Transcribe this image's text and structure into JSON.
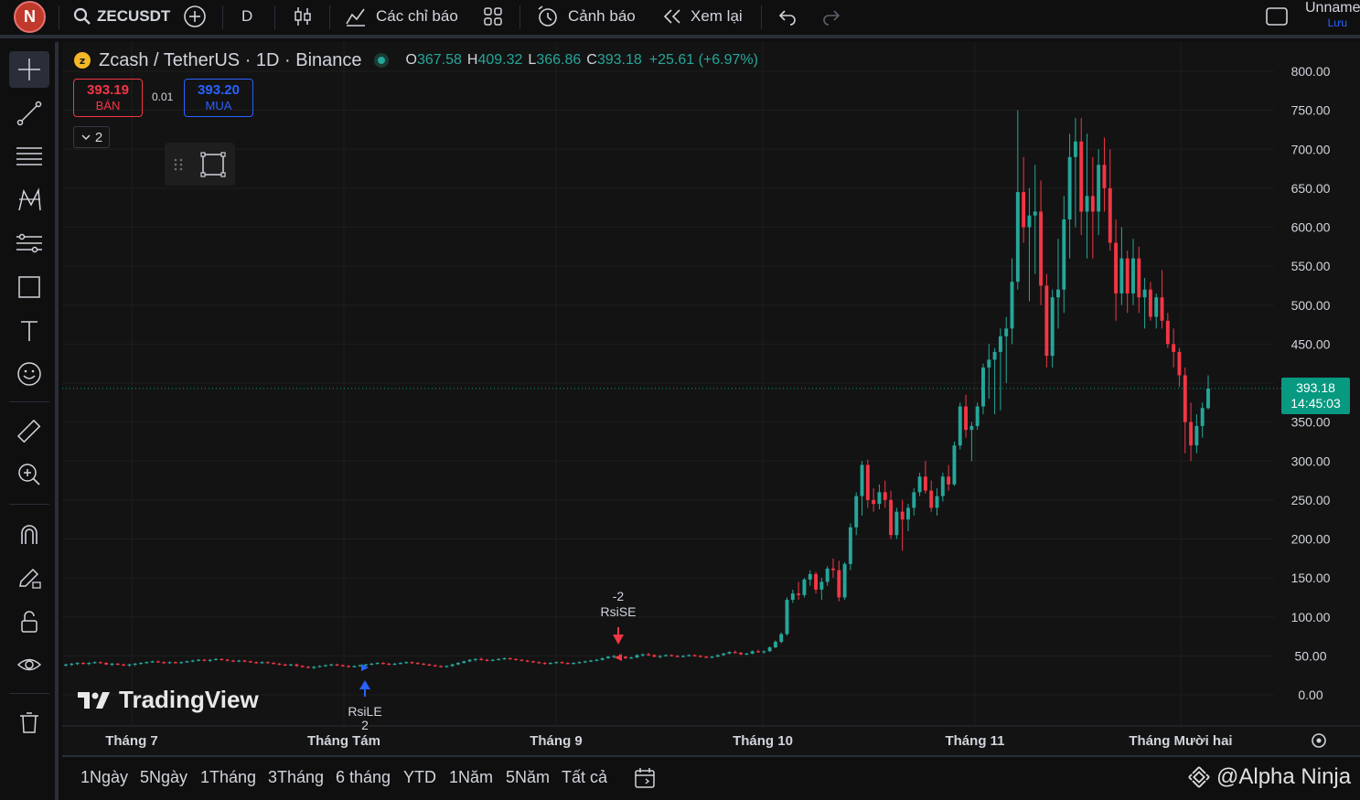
{
  "topbar": {
    "avatar_letter": "N",
    "symbol": "ZECUSDT",
    "interval": "D",
    "indicators_label": "Các chỉ báo",
    "alerts_label": "Cảnh báo",
    "replay_label": "Xem lại",
    "layout_name": "Unname",
    "layout_save": "Lưu"
  },
  "legend": {
    "title": "Zcash / TetherUS · 1D · Binance",
    "o_key": "O",
    "o": "367.58",
    "h_key": "H",
    "h": "409.32",
    "l_key": "L",
    "l": "366.86",
    "c_key": "C",
    "c": "393.18",
    "change": "+25.61 (+6.97%)"
  },
  "trade": {
    "sell_price": "393.19",
    "sell_label": "BÁN",
    "spread": "0.01",
    "buy_price": "393.20",
    "buy_label": "MUA",
    "collapse_count": "2"
  },
  "price_label": {
    "price": "393.18",
    "countdown": "14:45:03"
  },
  "watermark": "TradingView",
  "credit": "@Alpha Ninja",
  "ranges": [
    "1Ngày",
    "5Ngày",
    "1Tháng",
    "3Tháng",
    "6 tháng",
    "YTD",
    "1Năm",
    "5Năm",
    "Tất cả"
  ],
  "colors": {
    "up": "#26a69a",
    "down": "#f23645",
    "bg": "#131313",
    "grid": "#1e1e1e",
    "price_line": "#089981",
    "signal_long": "#2962ff",
    "signal_short": "#f23645"
  },
  "chart_data": {
    "type": "candlestick",
    "title": "Zcash / TetherUS · 1D · Binance",
    "ylim": [
      0,
      800
    ],
    "y_ticks": [
      "800.00",
      "750.00",
      "700.00",
      "650.00",
      "600.00",
      "550.00",
      "500.00",
      "450.00",
      "400.00",
      "350.00",
      "300.00",
      "250.00",
      "200.00",
      "150.00",
      "100.00",
      "50.00",
      "0.00"
    ],
    "x_ticks": [
      "Tháng 7",
      "Tháng Tám",
      "Tháng 9",
      "Tháng 10",
      "Tháng 11",
      "Tháng Mười hai"
    ],
    "last_price": 393.18,
    "signals": [
      {
        "label": "RsiLE",
        "count": "2",
        "type": "long",
        "price": 35
      },
      {
        "label": "RsiSE",
        "count": "-2",
        "type": "short",
        "price": 48
      }
    ],
    "candles_ohlc": [
      [
        38,
        40,
        36,
        39
      ],
      [
        39,
        41,
        37,
        40
      ],
      [
        40,
        42,
        38,
        41
      ],
      [
        41,
        42,
        39,
        40
      ],
      [
        40,
        42,
        38,
        41
      ],
      [
        41,
        43,
        40,
        42
      ],
      [
        42,
        43,
        40,
        41
      ],
      [
        41,
        42,
        38,
        39
      ],
      [
        39,
        41,
        37,
        40
      ],
      [
        40,
        41,
        38,
        39
      ],
      [
        39,
        40,
        37,
        38
      ],
      [
        38,
        40,
        36,
        39
      ],
      [
        39,
        41,
        37,
        40
      ],
      [
        40,
        42,
        39,
        41
      ],
      [
        41,
        43,
        40,
        42
      ],
      [
        42,
        44,
        41,
        43
      ],
      [
        43,
        44,
        41,
        42
      ],
      [
        42,
        43,
        40,
        41
      ],
      [
        41,
        43,
        40,
        42
      ],
      [
        42,
        43,
        40,
        41
      ],
      [
        41,
        43,
        40,
        42
      ],
      [
        42,
        44,
        41,
        43
      ],
      [
        43,
        45,
        42,
        44
      ],
      [
        44,
        46,
        43,
        45
      ],
      [
        45,
        46,
        43,
        44
      ],
      [
        44,
        46,
        42,
        45
      ],
      [
        45,
        47,
        44,
        46
      ],
      [
        46,
        47,
        44,
        45
      ],
      [
        45,
        46,
        43,
        44
      ],
      [
        44,
        45,
        42,
        43
      ],
      [
        43,
        45,
        42,
        44
      ],
      [
        44,
        45,
        42,
        43
      ],
      [
        43,
        44,
        41,
        42
      ],
      [
        42,
        43,
        40,
        41
      ],
      [
        41,
        43,
        40,
        42
      ],
      [
        42,
        43,
        40,
        41
      ],
      [
        41,
        42,
        39,
        40
      ],
      [
        40,
        41,
        38,
        39
      ],
      [
        39,
        40,
        37,
        38
      ],
      [
        38,
        40,
        37,
        39
      ],
      [
        39,
        40,
        36,
        37
      ],
      [
        37,
        38,
        35,
        36
      ],
      [
        36,
        37,
        34,
        35
      ],
      [
        35,
        37,
        33,
        36
      ],
      [
        36,
        38,
        35,
        37
      ],
      [
        37,
        39,
        36,
        38
      ],
      [
        38,
        40,
        37,
        39
      ],
      [
        39,
        40,
        37,
        38
      ],
      [
        38,
        39,
        36,
        37
      ],
      [
        37,
        38,
        35,
        36
      ],
      [
        36,
        38,
        35,
        37
      ],
      [
        37,
        39,
        36,
        38
      ],
      [
        38,
        40,
        37,
        39
      ],
      [
        39,
        41,
        38,
        40
      ],
      [
        40,
        42,
        39,
        41
      ],
      [
        41,
        42,
        39,
        40
      ],
      [
        40,
        41,
        38,
        39
      ],
      [
        39,
        41,
        38,
        40
      ],
      [
        40,
        42,
        39,
        41
      ],
      [
        41,
        43,
        40,
        42
      ],
      [
        42,
        43,
        40,
        41
      ],
      [
        41,
        42,
        39,
        40
      ],
      [
        40,
        41,
        38,
        39
      ],
      [
        39,
        40,
        37,
        38
      ],
      [
        38,
        39,
        36,
        37
      ],
      [
        37,
        38,
        35,
        36
      ],
      [
        36,
        38,
        35,
        37
      ],
      [
        37,
        40,
        36,
        39
      ],
      [
        39,
        42,
        38,
        41
      ],
      [
        41,
        44,
        40,
        43
      ],
      [
        43,
        46,
        42,
        45
      ],
      [
        45,
        47,
        43,
        46
      ],
      [
        46,
        48,
        44,
        45
      ],
      [
        45,
        46,
        43,
        44
      ],
      [
        44,
        46,
        43,
        45
      ],
      [
        45,
        47,
        44,
        46
      ],
      [
        46,
        48,
        45,
        47
      ],
      [
        47,
        48,
        45,
        46
      ],
      [
        46,
        47,
        44,
        45
      ],
      [
        45,
        46,
        43,
        44
      ],
      [
        44,
        45,
        42,
        43
      ],
      [
        43,
        44,
        41,
        42
      ],
      [
        42,
        43,
        40,
        41
      ],
      [
        41,
        42,
        39,
        40
      ],
      [
        40,
        42,
        39,
        41
      ],
      [
        41,
        43,
        40,
        42
      ],
      [
        42,
        43,
        40,
        41
      ],
      [
        41,
        42,
        39,
        40
      ],
      [
        40,
        42,
        39,
        41
      ],
      [
        41,
        43,
        40,
        42
      ],
      [
        42,
        44,
        41,
        43
      ],
      [
        43,
        45,
        42,
        44
      ],
      [
        44,
        46,
        43,
        45
      ],
      [
        45,
        48,
        44,
        47
      ],
      [
        47,
        50,
        46,
        49
      ],
      [
        49,
        51,
        47,
        50
      ],
      [
        50,
        52,
        48,
        49
      ],
      [
        49,
        50,
        46,
        47
      ],
      [
        47,
        49,
        46,
        48
      ],
      [
        48,
        52,
        47,
        51
      ],
      [
        51,
        53,
        49,
        52
      ],
      [
        52,
        54,
        50,
        51
      ],
      [
        51,
        52,
        48,
        49
      ],
      [
        49,
        51,
        47,
        50
      ],
      [
        50,
        52,
        49,
        51
      ],
      [
        51,
        52,
        49,
        50
      ],
      [
        50,
        51,
        48,
        49
      ],
      [
        49,
        51,
        48,
        50
      ],
      [
        50,
        52,
        49,
        51
      ],
      [
        51,
        52,
        49,
        50
      ],
      [
        50,
        51,
        48,
        49
      ],
      [
        49,
        50,
        47,
        48
      ],
      [
        48,
        50,
        47,
        49
      ],
      [
        49,
        52,
        48,
        51
      ],
      [
        51,
        54,
        50,
        53
      ],
      [
        53,
        56,
        52,
        55
      ],
      [
        55,
        57,
        53,
        54
      ],
      [
        54,
        55,
        51,
        52
      ],
      [
        52,
        54,
        51,
        53
      ],
      [
        53,
        57,
        52,
        56
      ],
      [
        56,
        58,
        54,
        55
      ],
      [
        55,
        57,
        53,
        56
      ],
      [
        56,
        62,
        55,
        61
      ],
      [
        61,
        70,
        60,
        68
      ],
      [
        68,
        80,
        66,
        78
      ],
      [
        78,
        125,
        76,
        122
      ],
      [
        122,
        135,
        118,
        130
      ],
      [
        130,
        145,
        122,
        128
      ],
      [
        128,
        150,
        125,
        148
      ],
      [
        148,
        160,
        140,
        155
      ],
      [
        155,
        158,
        130,
        135
      ],
      [
        135,
        150,
        122,
        145
      ],
      [
        145,
        165,
        140,
        162
      ],
      [
        162,
        175,
        150,
        160
      ],
      [
        160,
        172,
        120,
        125
      ],
      [
        125,
        170,
        122,
        168
      ],
      [
        168,
        220,
        160,
        215
      ],
      [
        215,
        260,
        205,
        255
      ],
      [
        255,
        300,
        230,
        295
      ],
      [
        295,
        302,
        240,
        250
      ],
      [
        250,
        265,
        235,
        245
      ],
      [
        245,
        270,
        238,
        260
      ],
      [
        260,
        275,
        240,
        250
      ],
      [
        250,
        262,
        200,
        205
      ],
      [
        205,
        240,
        200,
        235
      ],
      [
        235,
        250,
        185,
        225
      ],
      [
        225,
        245,
        210,
        240
      ],
      [
        240,
        265,
        230,
        260
      ],
      [
        260,
        285,
        255,
        280
      ],
      [
        280,
        300,
        258,
        262
      ],
      [
        262,
        275,
        235,
        240
      ],
      [
        240,
        265,
        230,
        255
      ],
      [
        255,
        285,
        248,
        280
      ],
      [
        280,
        295,
        262,
        270
      ],
      [
        270,
        325,
        268,
        320
      ],
      [
        320,
        375,
        315,
        370
      ],
      [
        370,
        385,
        330,
        340
      ],
      [
        340,
        350,
        300,
        345
      ],
      [
        345,
        375,
        340,
        370
      ],
      [
        370,
        425,
        360,
        420
      ],
      [
        420,
        450,
        380,
        430
      ],
      [
        430,
        445,
        360,
        440
      ],
      [
        440,
        470,
        365,
        460
      ],
      [
        460,
        485,
        400,
        470
      ],
      [
        470,
        560,
        450,
        530
      ],
      [
        530,
        750,
        520,
        645
      ],
      [
        645,
        690,
        580,
        600
      ],
      [
        600,
        650,
        505,
        615
      ],
      [
        615,
        680,
        540,
        620
      ],
      [
        620,
        660,
        500,
        525
      ],
      [
        525,
        540,
        420,
        435
      ],
      [
        435,
        520,
        420,
        510
      ],
      [
        510,
        585,
        470,
        520
      ],
      [
        520,
        640,
        490,
        610
      ],
      [
        610,
        720,
        560,
        690
      ],
      [
        690,
        740,
        600,
        710
      ],
      [
        710,
        740,
        590,
        620
      ],
      [
        620,
        720,
        560,
        640
      ],
      [
        640,
        690,
        560,
        620
      ],
      [
        620,
        700,
        590,
        680
      ],
      [
        680,
        715,
        620,
        650
      ],
      [
        650,
        700,
        570,
        580
      ],
      [
        580,
        610,
        480,
        515
      ],
      [
        515,
        600,
        500,
        560
      ],
      [
        560,
        570,
        490,
        515
      ],
      [
        515,
        585,
        500,
        560
      ],
      [
        560,
        575,
        490,
        510
      ],
      [
        510,
        535,
        470,
        520
      ],
      [
        520,
        530,
        480,
        485
      ],
      [
        485,
        515,
        470,
        510
      ],
      [
        510,
        545,
        470,
        480
      ],
      [
        480,
        490,
        445,
        450
      ],
      [
        450,
        470,
        420,
        440
      ],
      [
        440,
        445,
        395,
        410
      ],
      [
        410,
        420,
        310,
        350
      ],
      [
        350,
        375,
        300,
        320
      ],
      [
        320,
        360,
        310,
        345
      ],
      [
        345,
        375,
        330,
        368
      ],
      [
        368,
        410,
        366,
        393
      ]
    ]
  }
}
